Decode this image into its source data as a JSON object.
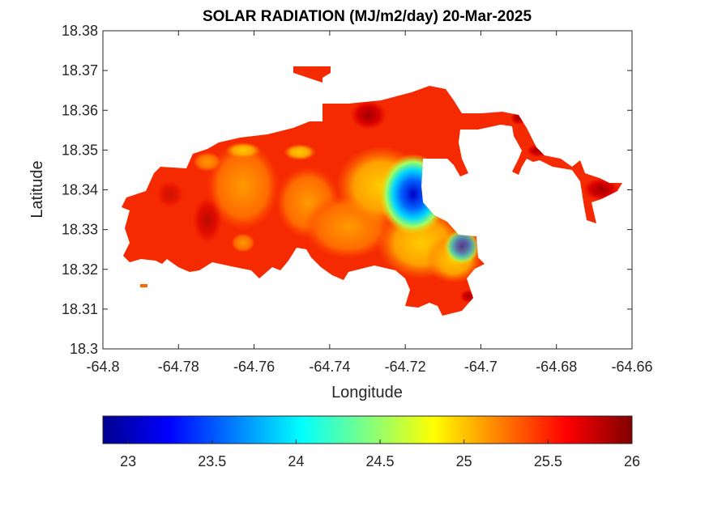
{
  "chart_data": {
    "type": "heatmap",
    "title": "SOLAR RADIATION (MJ/m2/day) 20-Mar-2025",
    "xlabel": "Longitude",
    "ylabel": "Latitude",
    "xlim": [
      -64.8,
      -64.66
    ],
    "ylim": [
      18.3,
      18.38
    ],
    "xticks": [
      "-64.8",
      "-64.78",
      "-64.76",
      "-64.74",
      "-64.72",
      "-64.7",
      "-64.68",
      "-64.66"
    ],
    "yticks": [
      "18.3",
      "18.31",
      "18.32",
      "18.33",
      "18.34",
      "18.35",
      "18.36",
      "18.37",
      "18.38"
    ],
    "colorbar": {
      "placement": "bottom",
      "colormap": "jet",
      "range": [
        22.85,
        26.0
      ],
      "ticks": [
        "23",
        "23.5",
        "24",
        "24.5",
        "25",
        "25.5",
        "26"
      ]
    },
    "grid": false,
    "features": [
      {
        "kind": "minimum",
        "lon": -64.718,
        "lat": 18.339,
        "value": 23.0
      },
      {
        "kind": "maximum",
        "lon": -64.728,
        "lat": 18.358,
        "value": 25.9
      },
      {
        "kind": "maximum",
        "lon": -64.669,
        "lat": 18.34,
        "value": 25.9
      },
      {
        "kind": "maximum",
        "lon": -64.686,
        "lat": 18.35,
        "value": 25.9
      },
      {
        "kind": "local-low",
        "lon": -64.766,
        "lat": 18.349,
        "value": 25.0
      },
      {
        "kind": "local-low",
        "lon": -64.748,
        "lat": 18.349,
        "value": 25.1
      }
    ]
  }
}
